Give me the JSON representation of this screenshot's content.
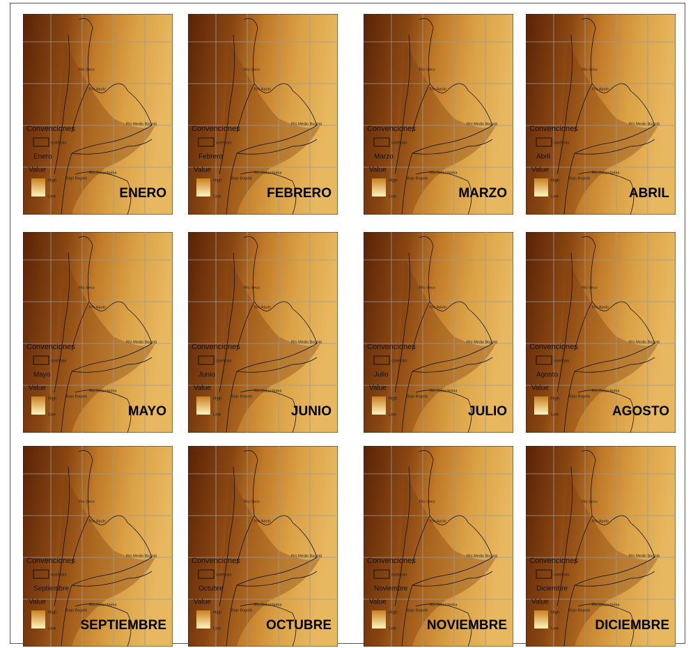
{
  "legend": {
    "title": "Convenciones",
    "basin": "cuencas",
    "value": "Value",
    "high": "High",
    "low": "Low"
  },
  "rivers": [
    "Río Seco",
    "Río Apulo",
    "Río Medio Bogotá",
    "Río Calandaima",
    "Bajo Bogotá"
  ],
  "panels": [
    {
      "title": "ENERO",
      "month": "Enero"
    },
    {
      "title": "FEBRERO",
      "month": "Febrero"
    },
    {
      "title": "MARZO",
      "month": "Marzo"
    },
    {
      "title": "ABRIL",
      "month": "Abril"
    },
    {
      "title": "MAYO",
      "month": "Mayo"
    },
    {
      "title": "JUNIO",
      "month": "Junio"
    },
    {
      "title": "JULIO",
      "month": "Julio"
    },
    {
      "title": "AGOSTO",
      "month": "Agosto"
    },
    {
      "title": "SEPTIEMBRE",
      "month": "Septiembre"
    },
    {
      "title": "OCTUBRE",
      "month": "Octubre"
    },
    {
      "title": "NOVIEMBRE",
      "month": "Noviembre"
    },
    {
      "title": "DICIEMBRE",
      "month": "Diciembre"
    }
  ]
}
